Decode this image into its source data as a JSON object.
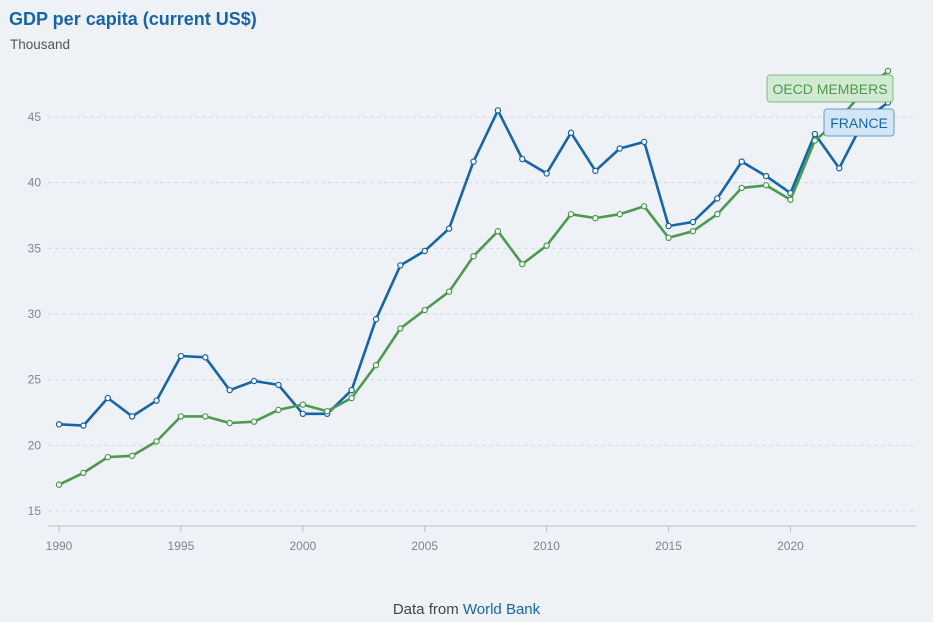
{
  "chart_data": {
    "type": "line",
    "title": "GDP per capita (current US$)",
    "unit_label": "Thousand",
    "x": [
      1990,
      1991,
      1992,
      1993,
      1994,
      1995,
      1996,
      1997,
      1998,
      1999,
      2000,
      2001,
      2002,
      2003,
      2004,
      2005,
      2006,
      2007,
      2008,
      2009,
      2010,
      2011,
      2012,
      2013,
      2014,
      2015,
      2016,
      2017,
      2018,
      2019,
      2020,
      2021,
      2022,
      2023,
      2024
    ],
    "xticks": [
      1990,
      1995,
      2000,
      2005,
      2010,
      2015,
      2020
    ],
    "yticks": [
      15,
      20,
      25,
      30,
      35,
      40,
      45
    ],
    "ylim": [
      15,
      48.5
    ],
    "xlim": [
      1990,
      2024
    ],
    "grid": true,
    "series": [
      {
        "name": "FRANCE",
        "color": "#1565a8",
        "label_bg": "#d3e6f6",
        "values": [
          21.6,
          21.5,
          23.6,
          22.2,
          23.4,
          26.8,
          26.7,
          24.2,
          24.9,
          24.6,
          22.4,
          22.4,
          24.2,
          29.6,
          33.7,
          34.8,
          36.5,
          41.6,
          45.5,
          41.8,
          40.7,
          43.8,
          40.9,
          42.6,
          43.1,
          36.7,
          37.0,
          38.8,
          41.6,
          40.5,
          39.2,
          43.7,
          41.1,
          44.7,
          46.1
        ]
      },
      {
        "name": "OECD MEMBERS",
        "color": "#4b9a4e",
        "label_bg": "#d3ead2",
        "values": [
          17.0,
          17.9,
          19.1,
          19.2,
          20.3,
          22.2,
          22.2,
          21.7,
          21.8,
          22.7,
          23.1,
          22.6,
          23.6,
          26.1,
          28.9,
          30.3,
          31.7,
          34.4,
          36.3,
          33.8,
          35.2,
          37.6,
          37.3,
          37.6,
          38.2,
          35.8,
          36.3,
          37.6,
          39.6,
          39.8,
          38.7,
          43.2,
          44.8,
          47.0,
          48.5
        ]
      }
    ]
  },
  "footer": {
    "prefix": "Data from",
    "source": "World Bank"
  }
}
